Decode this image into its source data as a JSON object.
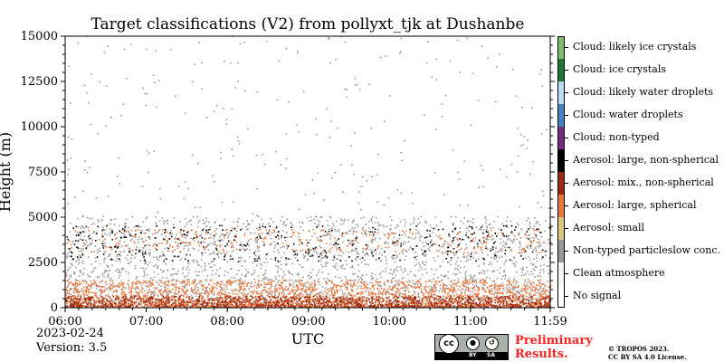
{
  "chart_data": {
    "type": "heatmap",
    "title": "Target classifications (V2) from pollyxt_tjk at Dushanbe",
    "xlabel": "UTC",
    "ylabel": "Height (m)",
    "xlim": [
      "06:00",
      "11:59"
    ],
    "ylim": [
      0,
      15000
    ],
    "x_ticks": [
      "06:00",
      "07:00",
      "08:00",
      "09:00",
      "10:00",
      "11:00",
      "11:59"
    ],
    "y_ticks": [
      "0",
      "2500",
      "5000",
      "7500",
      "10000",
      "12500",
      "15000"
    ],
    "classes": [
      {
        "label": "No signal",
        "color": "#ffffff"
      },
      {
        "label": "Clean atmosphere",
        "color": "#f5f5f5"
      },
      {
        "label": "Non-typed particleslow conc.",
        "color": "#999999"
      },
      {
        "label": "Aerosol: small",
        "color": "#dcc97a"
      },
      {
        "label": "Aerosol: large, spherical",
        "color": "#ef7438"
      },
      {
        "label": "Aerosol: mix., non-spherical",
        "color": "#a12a0e"
      },
      {
        "label": "Aerosol: large, non-spherical",
        "color": "#000000"
      },
      {
        "label": "Cloud: non-typed",
        "color": "#762a83"
      },
      {
        "label": "Cloud: water droplets",
        "color": "#3f84c5"
      },
      {
        "label": "Cloud: likely water droplets",
        "color": "#b9dcf5"
      },
      {
        "label": "Cloud: ice crystals",
        "color": "#1b7837"
      },
      {
        "label": "Cloud: likely ice crystals",
        "color": "#7fbf66"
      }
    ],
    "layers": [
      {
        "class": "Aerosol: mix., non-spherical",
        "height_range_m": [
          0,
          600
        ]
      },
      {
        "class": "Aerosol: large, spherical",
        "height_range_m": [
          0,
          1500
        ]
      },
      {
        "class": "Non-typed particleslow conc.",
        "height_range_m": [
          0,
          5000
        ]
      },
      {
        "class": "Aerosol: large, non-spherical",
        "height_range_m": [
          2500,
          4500
        ]
      }
    ],
    "grid": false
  },
  "footer": {
    "date": "2023-02-24",
    "version": "Version: 3.5",
    "prelim_line1": "Preliminary",
    "prelim_line2": "Results.",
    "copyright_line1": "© TROPOS 2023.",
    "copyright_line2": "CC BY SA 4.0 License."
  },
  "license_badge": {
    "cc": "cc",
    "by": "BY",
    "sa": "SA"
  }
}
